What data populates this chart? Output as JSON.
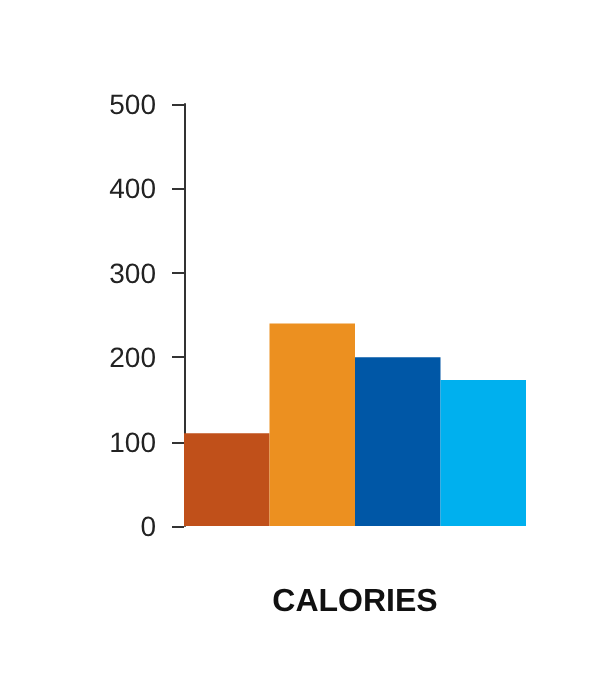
{
  "chart_data": {
    "type": "bar",
    "categories": [
      null,
      null,
      null,
      null
    ],
    "values": [
      110,
      240,
      200,
      173
    ],
    "colors": [
      "#c0501a",
      "#ec9020",
      "#0057a6",
      "#00b0ee"
    ],
    "xlabel": "CALORIES",
    "ylim": [
      0,
      500
    ],
    "yticks": [
      0,
      100,
      200,
      300,
      400,
      500
    ],
    "grid": false
  }
}
